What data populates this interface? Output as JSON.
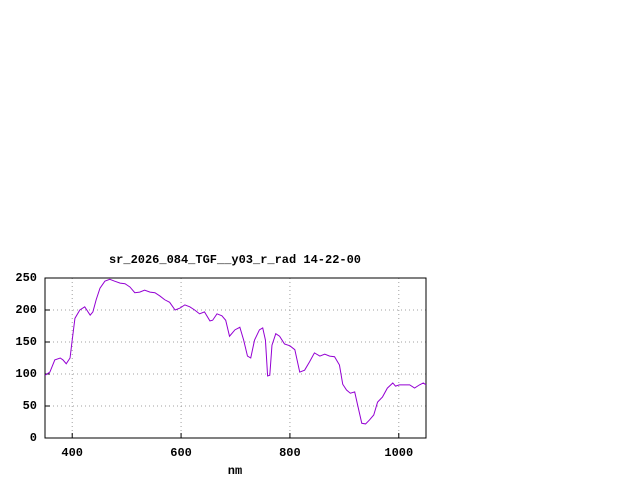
{
  "chart_data": {
    "type": "line",
    "title": "sr_2026_084_TGF__y03_r_rad 14-22-00",
    "xlabel": "nm",
    "x": [
      350,
      359,
      368,
      378,
      383,
      389,
      396,
      400,
      405,
      414,
      423,
      433,
      438,
      444,
      451,
      460,
      469,
      478,
      488,
      497,
      506,
      515,
      524,
      533,
      543,
      552,
      561,
      570,
      579,
      589,
      598,
      607,
      616,
      625,
      634,
      643,
      653,
      658,
      666,
      675,
      682,
      689,
      699,
      708,
      715,
      722,
      728,
      735,
      744,
      750,
      755,
      759,
      763,
      767,
      774,
      781,
      790,
      800,
      809,
      818,
      827,
      836,
      845,
      855,
      864,
      873,
      882,
      891,
      897,
      904,
      911,
      919,
      924,
      932,
      939,
      946,
      954,
      961,
      970,
      979,
      989,
      994,
      1001,
      1011,
      1020,
      1029,
      1038,
      1045,
      1050
    ],
    "values": [
      98,
      103,
      122,
      125,
      122,
      116,
      125,
      153,
      187,
      200,
      205,
      192,
      197,
      216,
      234,
      245,
      248,
      245,
      242,
      241,
      236,
      227,
      228,
      231,
      228,
      227,
      222,
      216,
      212,
      200,
      203,
      208,
      205,
      200,
      194,
      197,
      183,
      184,
      194,
      191,
      184,
      159,
      169,
      173,
      153,
      128,
      125,
      153,
      169,
      172,
      153,
      97,
      98,
      145,
      163,
      159,
      147,
      144,
      138,
      103,
      106,
      119,
      133,
      128,
      131,
      128,
      127,
      114,
      84,
      75,
      70,
      72,
      53,
      23,
      22,
      28,
      36,
      56,
      64,
      78,
      86,
      81,
      83,
      83,
      83,
      78,
      83,
      86,
      83
    ],
    "color": "#9400d3",
    "xlim": [
      350,
      1050
    ],
    "xticks": [
      400,
      600,
      800,
      1000
    ],
    "ylim": [
      0,
      250
    ],
    "yticks": [
      0,
      50,
      100,
      150,
      200,
      250
    ],
    "grid": true
  }
}
